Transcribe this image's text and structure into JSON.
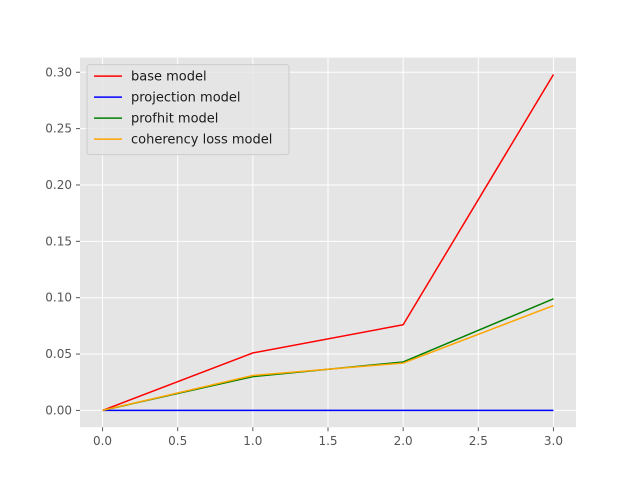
{
  "chart_data": {
    "type": "line",
    "title": "",
    "xlabel": "",
    "ylabel": "",
    "xlim": [
      -0.15,
      3.15
    ],
    "ylim": [
      -0.0149,
      0.313
    ],
    "grid": true,
    "legend_position": "top-left",
    "x_ticks": [
      0.0,
      0.5,
      1.0,
      1.5,
      2.0,
      2.5,
      3.0
    ],
    "x_tick_labels": [
      "0.0",
      "0.5",
      "1.0",
      "1.5",
      "2.0",
      "2.5",
      "3.0"
    ],
    "y_ticks": [
      0.0,
      0.05,
      0.1,
      0.15,
      0.2,
      0.25,
      0.3
    ],
    "y_tick_labels": [
      "0.00",
      "0.05",
      "0.10",
      "0.15",
      "0.20",
      "0.25",
      "0.30"
    ],
    "x": [
      0,
      1,
      2,
      3
    ],
    "series": [
      {
        "name": "base model",
        "color": "#ff0000",
        "values": [
          0.0,
          0.051,
          0.076,
          0.298
        ]
      },
      {
        "name": "projection model",
        "color": "#0000ff",
        "values": [
          0.0,
          0.0,
          0.0,
          0.0
        ]
      },
      {
        "name": "profhit model",
        "color": "#008000",
        "values": [
          0.0,
          0.03,
          0.043,
          0.099
        ]
      },
      {
        "name": "coherency loss model",
        "color": "#ffa500",
        "values": [
          0.0,
          0.031,
          0.042,
          0.093
        ]
      }
    ]
  }
}
